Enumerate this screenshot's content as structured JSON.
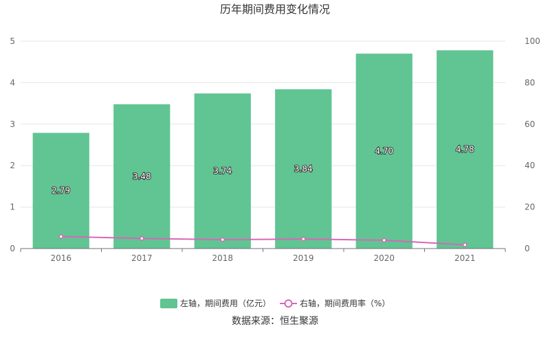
{
  "chart_data": {
    "type": "bar",
    "title": "历年期间费用变化情况",
    "categories": [
      "2016",
      "2017",
      "2018",
      "2019",
      "2020",
      "2021"
    ],
    "series": [
      {
        "name": "左轴，期间费用（亿元）",
        "type": "bar",
        "axis": "left",
        "color": "#61c493",
        "values": [
          2.79,
          3.48,
          3.74,
          3.84,
          4.7,
          4.78
        ],
        "labels": [
          "2.79",
          "3.48",
          "3.74",
          "3.84",
          "4.70",
          "4.78"
        ]
      },
      {
        "name": "右轴，期间费用率（%）",
        "type": "line",
        "axis": "right",
        "color": "#d966b8",
        "values": [
          5.8,
          4.9,
          4.3,
          4.6,
          4.0,
          1.8
        ]
      }
    ],
    "y_left": {
      "min": 0,
      "max": 5,
      "ticks": [
        "0",
        "1",
        "2",
        "3",
        "4",
        "5"
      ]
    },
    "y_right": {
      "min": 0,
      "max": 100,
      "ticks": [
        "0",
        "20",
        "40",
        "60",
        "80",
        "100"
      ]
    },
    "grid": true,
    "legend_position": "bottom"
  },
  "source": "数据来源：恒生聚源"
}
